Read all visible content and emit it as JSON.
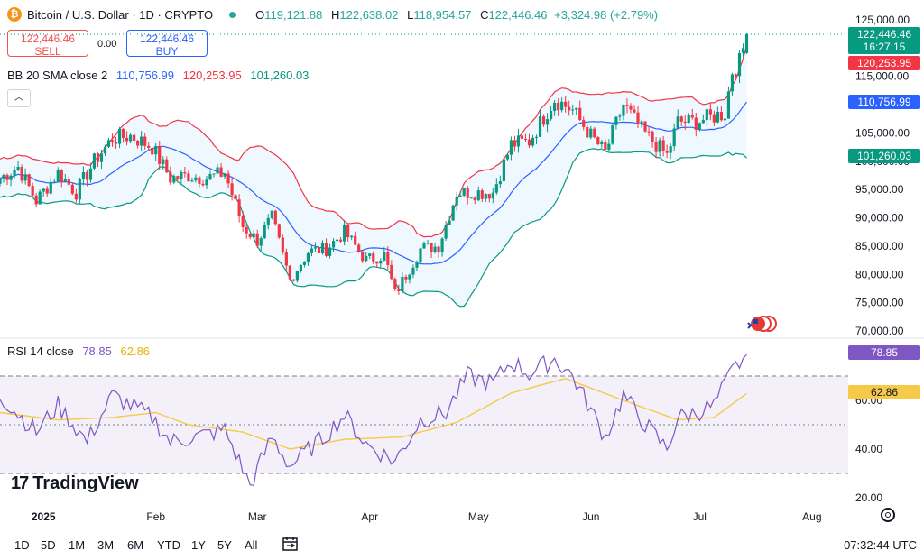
{
  "header": {
    "coin_symbol": "₿",
    "title": "Bitcoin / U.S. Dollar · 1D · CRYPTO",
    "o_label": "O",
    "o_value": "119,121.88",
    "h_label": "H",
    "h_value": "122,638.02",
    "l_label": "L",
    "l_value": "118,954.57",
    "c_label": "C",
    "c_value": "122,446.46",
    "change": "+3,324.98 (+2.79%)"
  },
  "trade": {
    "sell_price": "122,446.46",
    "sell_label": "SELL",
    "spread": "0.00",
    "buy_price": "122,446.46",
    "buy_label": "BUY"
  },
  "bb_legend": {
    "label": "BB 20 SMA close 2",
    "basis": "110,756.99",
    "upper": "120,253.95",
    "lower": "101,260.03",
    "basis_color": "#2962ff",
    "upper_color": "#f23645",
    "lower_color": "#089981"
  },
  "rsi_legend": {
    "label": "RSI 14 close",
    "rsi": "78.85",
    "ma": "62.86",
    "rsi_color": "#7e57c2",
    "ma_color": "#f7c948"
  },
  "price_tags": {
    "last_price": "122,446.46",
    "countdown": "16:27:15",
    "upper": "120,253.95",
    "basis": "110,756.99",
    "lower": "101,260.03",
    "rsi": "78.85",
    "rsi_ma": "62.86"
  },
  "logo": {
    "text": "TradingView",
    "mark": "17"
  },
  "toolbar": {
    "timeframes": [
      "1D",
      "5D",
      "1M",
      "3M",
      "6M",
      "YTD",
      "1Y",
      "5Y",
      "All"
    ],
    "time": "07:32:44 UTC"
  },
  "icons": [
    "bitcoin-icon",
    "calendar-icon",
    "settings-icon",
    "flags-icon",
    "collapse-icon"
  ],
  "chart_data": [
    {
      "type": "candlestick",
      "title": "Bitcoin / U.S. Dollar · 1D · CRYPTO",
      "x_axis_labels": [
        "2025",
        "Feb",
        "Mar",
        "Apr",
        "May",
        "Jun",
        "Jul",
        "Aug"
      ],
      "y_ticks": [
        "125,000.00",
        "120,000.00",
        "115,000.00",
        "110,000.00",
        "105,000.00",
        "100,000.00",
        "95,000.00",
        "90,000.00",
        "85,000.00",
        "80,000.00",
        "75,000.00",
        "70,000.00"
      ],
      "ylim": [
        70000,
        125000
      ],
      "close_path": [
        {
          "date": "2024-12-20",
          "close": 97000
        },
        {
          "date": "2024-12-25",
          "close": 99000
        },
        {
          "date": "2024-12-30",
          "close": 93000
        },
        {
          "date": "2025-01-05",
          "close": 98000
        },
        {
          "date": "2025-01-10",
          "close": 94500
        },
        {
          "date": "2025-01-15",
          "close": 100000
        },
        {
          "date": "2025-01-20",
          "close": 104000
        },
        {
          "date": "2025-01-25",
          "close": 104500
        },
        {
          "date": "2025-01-31",
          "close": 102500
        },
        {
          "date": "2025-02-05",
          "close": 97000
        },
        {
          "date": "2025-02-10",
          "close": 97500
        },
        {
          "date": "2025-02-15",
          "close": 97000
        },
        {
          "date": "2025-02-20",
          "close": 98000
        },
        {
          "date": "2025-02-25",
          "close": 88500
        },
        {
          "date": "2025-03-01",
          "close": 86000
        },
        {
          "date": "2025-03-05",
          "close": 90000
        },
        {
          "date": "2025-03-10",
          "close": 79000
        },
        {
          "date": "2025-03-15",
          "close": 84000
        },
        {
          "date": "2025-03-20",
          "close": 84500
        },
        {
          "date": "2025-03-25",
          "close": 87500
        },
        {
          "date": "2025-03-31",
          "close": 82500
        },
        {
          "date": "2025-04-05",
          "close": 83500
        },
        {
          "date": "2025-04-08",
          "close": 76500
        },
        {
          "date": "2025-04-15",
          "close": 84500
        },
        {
          "date": "2025-04-20",
          "close": 85000
        },
        {
          "date": "2025-04-25",
          "close": 94500
        },
        {
          "date": "2025-04-30",
          "close": 94500
        },
        {
          "date": "2025-05-05",
          "close": 94500
        },
        {
          "date": "2025-05-10",
          "close": 103000
        },
        {
          "date": "2025-05-15",
          "close": 103500
        },
        {
          "date": "2025-05-22",
          "close": 111000
        },
        {
          "date": "2025-05-27",
          "close": 109000
        },
        {
          "date": "2025-06-01",
          "close": 104500
        },
        {
          "date": "2025-06-05",
          "close": 101500
        },
        {
          "date": "2025-06-10",
          "close": 110000
        },
        {
          "date": "2025-06-15",
          "close": 105500
        },
        {
          "date": "2025-06-22",
          "close": 101000
        },
        {
          "date": "2025-06-25",
          "close": 107000
        },
        {
          "date": "2025-06-30",
          "close": 107000
        },
        {
          "date": "2025-07-05",
          "close": 108000
        },
        {
          "date": "2025-07-08",
          "close": 108500
        },
        {
          "date": "2025-07-10",
          "close": 116000
        },
        {
          "date": "2025-07-12",
          "close": 117500
        },
        {
          "date": "2025-07-14",
          "close": 122446.46
        }
      ],
      "last": {
        "open": 119121.88,
        "high": 122638.02,
        "low": 118954.57,
        "close": 122446.46
      },
      "bollinger": {
        "length": 20,
        "mult": 2,
        "last_basis": 110756.99,
        "last_upper": 120253.95,
        "last_lower": 101260.03
      }
    },
    {
      "type": "line",
      "title": "RSI 14 close",
      "y_ticks": [
        "80.00",
        "60.00",
        "40.00",
        "20.00"
      ],
      "ylim": [
        20,
        85
      ],
      "bands": [
        30,
        50,
        70
      ],
      "rsi_path": [
        {
          "date": "2024-12-20",
          "rsi": 62
        },
        {
          "date": "2024-12-30",
          "rsi": 47
        },
        {
          "date": "2025-01-05",
          "rsi": 58
        },
        {
          "date": "2025-01-13",
          "rsi": 43
        },
        {
          "date": "2025-01-20",
          "rsi": 62
        },
        {
          "date": "2025-01-31",
          "rsi": 53
        },
        {
          "date": "2025-02-05",
          "rsi": 43
        },
        {
          "date": "2025-02-15",
          "rsi": 46
        },
        {
          "date": "2025-02-20",
          "rsi": 48
        },
        {
          "date": "2025-02-27",
          "rsi": 25
        },
        {
          "date": "2025-03-05",
          "rsi": 45
        },
        {
          "date": "2025-03-10",
          "rsi": 33
        },
        {
          "date": "2025-03-20",
          "rsi": 46
        },
        {
          "date": "2025-03-25",
          "rsi": 54
        },
        {
          "date": "2025-03-31",
          "rsi": 42
        },
        {
          "date": "2025-04-08",
          "rsi": 35
        },
        {
          "date": "2025-04-15",
          "rsi": 52
        },
        {
          "date": "2025-04-22",
          "rsi": 55
        },
        {
          "date": "2025-04-28",
          "rsi": 70
        },
        {
          "date": "2025-05-05",
          "rsi": 67
        },
        {
          "date": "2025-05-10",
          "rsi": 76
        },
        {
          "date": "2025-05-15",
          "rsi": 71
        },
        {
          "date": "2025-05-22",
          "rsi": 77
        },
        {
          "date": "2025-05-27",
          "rsi": 70
        },
        {
          "date": "2025-06-01",
          "rsi": 56
        },
        {
          "date": "2025-06-05",
          "rsi": 45
        },
        {
          "date": "2025-06-10",
          "rsi": 62
        },
        {
          "date": "2025-06-15",
          "rsi": 52
        },
        {
          "date": "2025-06-22",
          "rsi": 40
        },
        {
          "date": "2025-06-25",
          "rsi": 53
        },
        {
          "date": "2025-06-30",
          "rsi": 55
        },
        {
          "date": "2025-07-05",
          "rsi": 58
        },
        {
          "date": "2025-07-10",
          "rsi": 72
        },
        {
          "date": "2025-07-14",
          "rsi": 78.85
        }
      ],
      "ma_path": [
        {
          "date": "2024-12-20",
          "ma": 55
        },
        {
          "date": "2025-01-05",
          "ma": 52
        },
        {
          "date": "2025-01-20",
          "ma": 53
        },
        {
          "date": "2025-02-01",
          "ma": 55
        },
        {
          "date": "2025-02-10",
          "ma": 50
        },
        {
          "date": "2025-02-25",
          "ma": 47
        },
        {
          "date": "2025-03-10",
          "ma": 40
        },
        {
          "date": "2025-03-25",
          "ma": 44
        },
        {
          "date": "2025-04-10",
          "ma": 45
        },
        {
          "date": "2025-04-25",
          "ma": 51
        },
        {
          "date": "2025-05-10",
          "ma": 63
        },
        {
          "date": "2025-05-25",
          "ma": 69
        },
        {
          "date": "2025-06-10",
          "ma": 60
        },
        {
          "date": "2025-06-25",
          "ma": 52
        },
        {
          "date": "2025-07-05",
          "ma": 53
        },
        {
          "date": "2025-07-14",
          "ma": 62.86
        }
      ]
    }
  ]
}
